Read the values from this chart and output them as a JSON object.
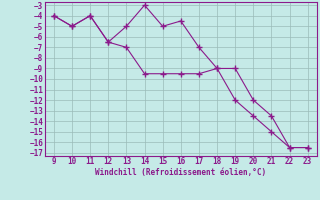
{
  "xlabel": "Windchill (Refroidissement éolien,°C)",
  "line1_x": [
    9,
    10,
    11,
    12,
    13,
    14,
    15,
    16,
    17,
    18,
    19,
    20,
    21,
    22,
    23
  ],
  "line1_y": [
    -4,
    -5,
    -4,
    -6.5,
    -5,
    -3,
    -5,
    -4.5,
    -7,
    -9,
    -12,
    -13.5,
    -15,
    -16.5,
    -16.5
  ],
  "line2_x": [
    9,
    10,
    11,
    12,
    13,
    14,
    15,
    16,
    17,
    18,
    19,
    20,
    21,
    22,
    23
  ],
  "line2_y": [
    -4,
    -5,
    -4,
    -6.5,
    -7,
    -9.5,
    -9.5,
    -9.5,
    -9.5,
    -9,
    -9,
    -12,
    -13.5,
    -16.5,
    -16.5
  ],
  "line_color": "#8B1A8B",
  "bg_color": "#C5EAE7",
  "grid_color": "#9BBBB8",
  "xlim": [
    9,
    23
  ],
  "ylim": [
    -17,
    -3
  ],
  "xticks": [
    9,
    10,
    11,
    12,
    13,
    14,
    15,
    16,
    17,
    18,
    19,
    20,
    21,
    22,
    23
  ],
  "yticks": [
    -3,
    -4,
    -5,
    -6,
    -7,
    -8,
    -9,
    -10,
    -11,
    -12,
    -13,
    -14,
    -15,
    -16,
    -17
  ],
  "figwidth": 3.2,
  "figheight": 2.0,
  "dpi": 100
}
